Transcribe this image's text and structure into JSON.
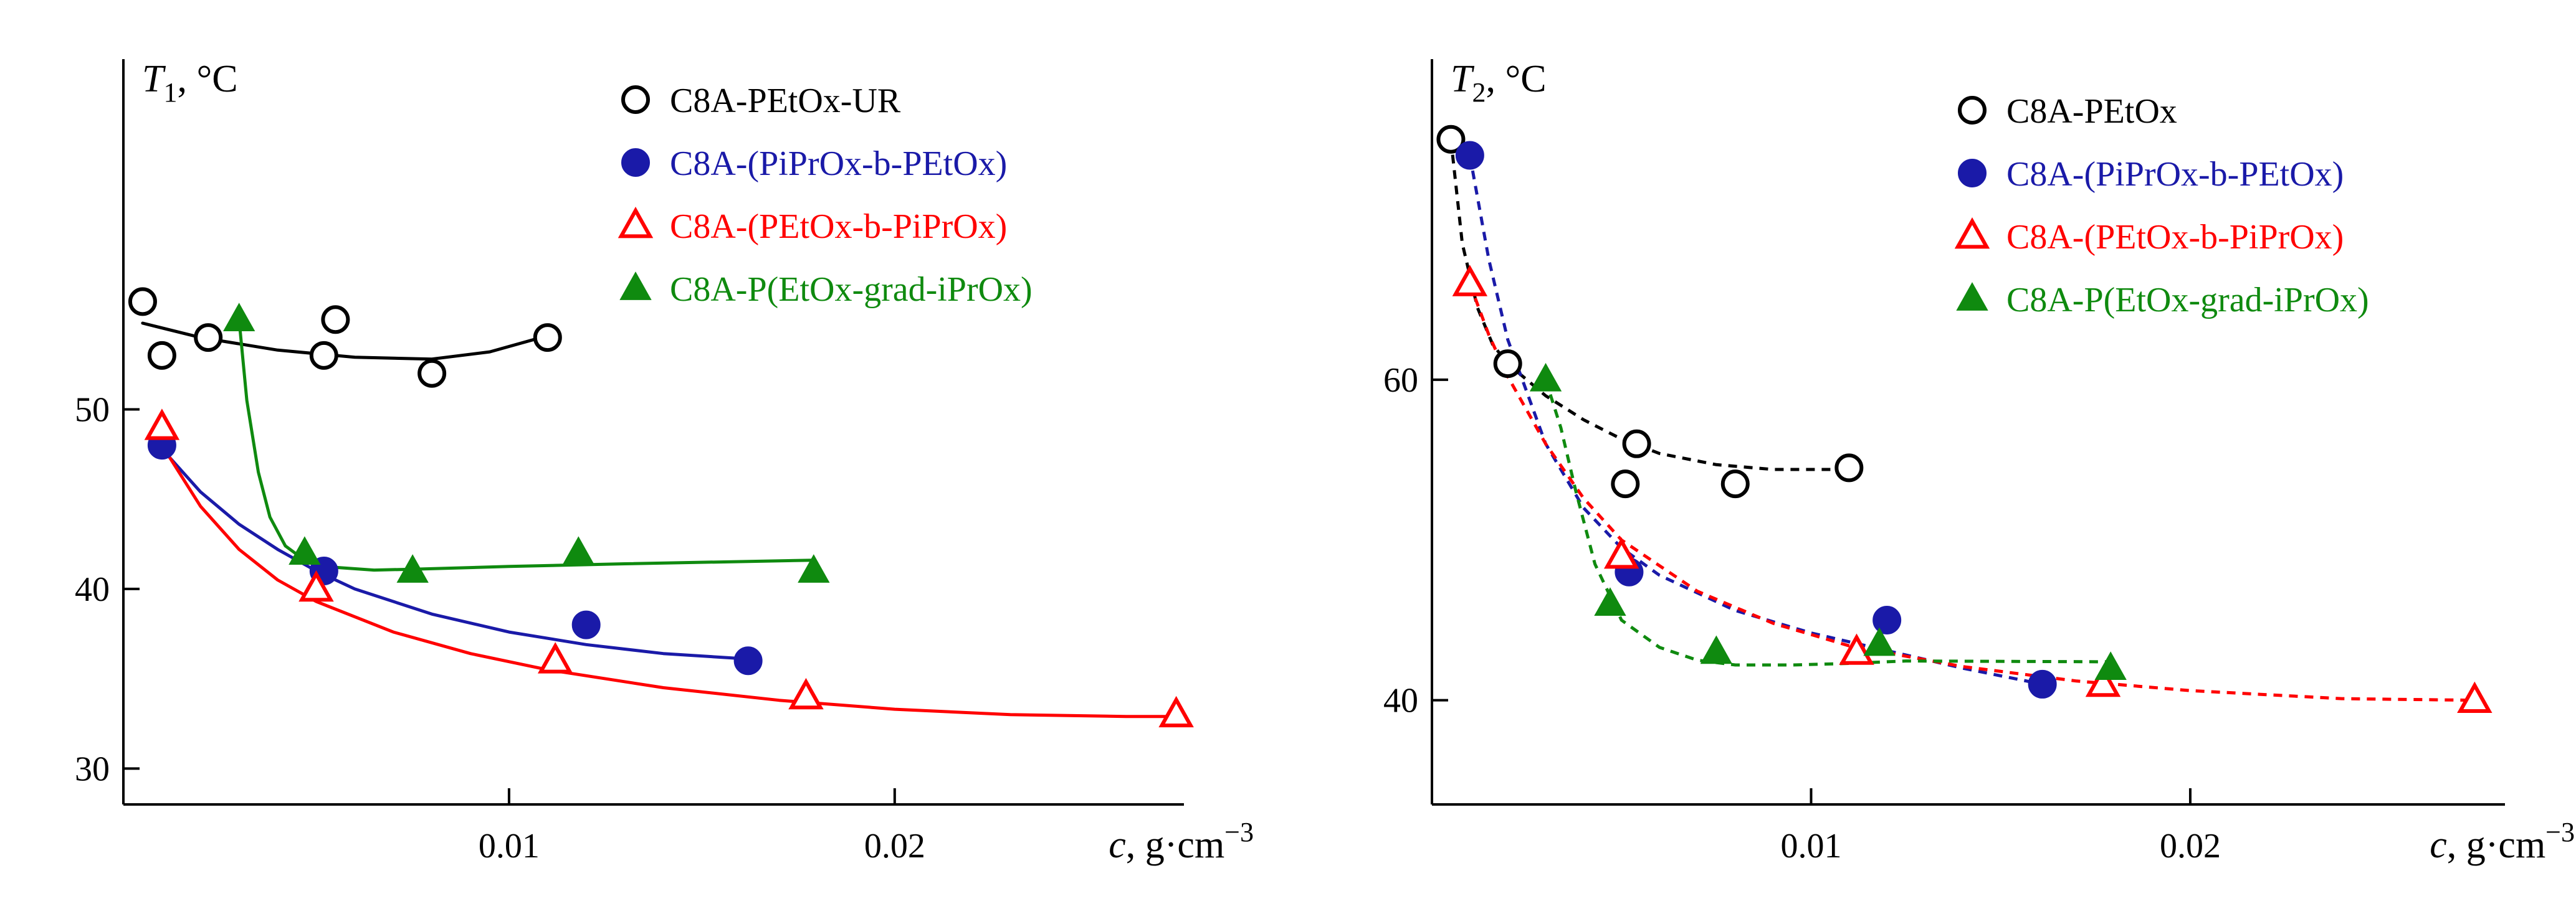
{
  "chart_data": [
    {
      "type": "scatter",
      "title": "",
      "ylabel": {
        "symbol": "T",
        "subscript": "1",
        "unit": ", °C"
      },
      "xlabel": {
        "symbol": "c",
        "unit": ", g·cm",
        "exponent": "−3"
      },
      "xlim": [
        0.0,
        0.0275
      ],
      "ylim": [
        28,
        69.5
      ],
      "xticks": [
        0.01,
        0.02
      ],
      "xtick_labels": [
        "0.01",
        "0.02"
      ],
      "yticks": [
        30,
        40,
        50
      ],
      "ytick_labels": [
        "30",
        "40",
        "50"
      ],
      "legend_position": "top-right",
      "series": [
        {
          "name": "C8A-PEtOx-UR",
          "color": "#000000",
          "marker": "circle-open",
          "line": "solid",
          "x": [
            0.0005,
            0.001,
            0.0022,
            0.0052,
            0.0055,
            0.008,
            0.011
          ],
          "y": [
            56,
            53,
            54,
            53,
            55,
            52,
            54
          ],
          "fit_x": [
            0.0005,
            0.002,
            0.004,
            0.006,
            0.008,
            0.0095,
            0.011
          ],
          "fit_y": [
            54.8,
            54.0,
            53.3,
            52.9,
            52.8,
            53.2,
            54.1
          ]
        },
        {
          "name": "C8A-(PiPrOx-b-PEtOx)",
          "color": "#1a1aa8",
          "marker": "circle-filled",
          "line": "solid",
          "x": [
            0.001,
            0.0052,
            0.012,
            0.0162
          ],
          "y": [
            48,
            41,
            38,
            36
          ],
          "fit_x": [
            0.001,
            0.002,
            0.003,
            0.004,
            0.005,
            0.006,
            0.008,
            0.01,
            0.012,
            0.014,
            0.0162
          ],
          "fit_y": [
            47.8,
            45.4,
            43.6,
            42.2,
            41.0,
            40.0,
            38.6,
            37.6,
            36.9,
            36.4,
            36.1
          ]
        },
        {
          "name": "C8A-(PEtOx-b-PiPrOx)",
          "color": "#ff0000",
          "marker": "triangle-open",
          "line": "solid",
          "x": [
            0.001,
            0.005,
            0.0112,
            0.0177,
            0.0273
          ],
          "y": [
            49,
            40,
            36,
            34,
            33
          ],
          "fit_x": [
            0.001,
            0.002,
            0.003,
            0.004,
            0.005,
            0.007,
            0.009,
            0.011,
            0.014,
            0.017,
            0.02,
            0.023,
            0.026,
            0.0273
          ],
          "fit_y": [
            48.0,
            44.6,
            42.2,
            40.5,
            39.3,
            37.6,
            36.4,
            35.5,
            34.5,
            33.8,
            33.3,
            33.0,
            32.9,
            32.9
          ]
        },
        {
          "name": "C8A-P(EtOx-grad-iPrOx)",
          "color": "#0f8a0f",
          "marker": "triangle-filled",
          "line": "solid",
          "x": [
            0.003,
            0.0047,
            0.0075,
            0.0118,
            0.0179
          ],
          "y": [
            55,
            42,
            41,
            42,
            41
          ],
          "fit_x": [
            0.003,
            0.0032,
            0.0035,
            0.0038,
            0.0042,
            0.0047,
            0.0055,
            0.0065,
            0.0075,
            0.01,
            0.013,
            0.0179
          ],
          "fit_y": [
            55.0,
            50.5,
            46.5,
            44.0,
            42.4,
            41.6,
            41.2,
            41.05,
            41.1,
            41.25,
            41.4,
            41.6
          ]
        }
      ]
    },
    {
      "type": "scatter",
      "title": "",
      "ylabel": {
        "symbol": "T",
        "subscript": "2",
        "unit": ", °C"
      },
      "xlabel": {
        "symbol": "c",
        "unit": ", g·cm",
        "exponent": "−3"
      },
      "xlim": [
        0.0,
        0.0283
      ],
      "ylim": [
        33.5,
        80
      ],
      "xticks": [
        0.01,
        0.02
      ],
      "xtick_labels": [
        "0.01",
        "0.02"
      ],
      "yticks": [
        40,
        60
      ],
      "ytick_labels": [
        "40",
        "60"
      ],
      "legend_position": "top-right",
      "series": [
        {
          "name": "C8A-PEtOx",
          "color": "#000000",
          "marker": "circle-open",
          "line": "dashed",
          "x": [
            0.0005,
            0.002,
            0.0051,
            0.0054,
            0.008,
            0.011
          ],
          "y": [
            75,
            61,
            53.5,
            56,
            53.5,
            54.5
          ],
          "fit_x": [
            0.0005,
            0.0008,
            0.0012,
            0.0016,
            0.002,
            0.003,
            0.004,
            0.005,
            0.006,
            0.0075,
            0.009,
            0.011
          ],
          "fit_y": [
            75,
            68.5,
            64.5,
            62.2,
            61,
            59,
            57.5,
            56.3,
            55.4,
            54.7,
            54.4,
            54.4
          ]
        },
        {
          "name": "C8A-(PiPrOx-b-PEtOx)",
          "color": "#1a1aa8",
          "marker": "circle-filled",
          "line": "dashed",
          "x": [
            0.001,
            0.0052,
            0.012,
            0.0161
          ],
          "y": [
            74,
            48,
            45,
            41
          ],
          "fit_x": [
            0.001,
            0.0015,
            0.002,
            0.003,
            0.004,
            0.005,
            0.006,
            0.008,
            0.01,
            0.012,
            0.014,
            0.0161
          ],
          "fit_y": [
            74,
            67.5,
            62.5,
            56,
            52,
            49.5,
            47.8,
            45.6,
            44.2,
            43.1,
            42.0,
            41.0
          ]
        },
        {
          "name": "C8A-(PEtOx-b-PiPrOx)",
          "color": "#ff0000",
          "marker": "triangle-open",
          "line": "dashed",
          "x": [
            0.001,
            0.005,
            0.0112,
            0.0177,
            0.0275
          ],
          "y": [
            66,
            49,
            43,
            41,
            40
          ],
          "fit_x": [
            0.001,
            0.0015,
            0.002,
            0.003,
            0.004,
            0.005,
            0.007,
            0.009,
            0.011,
            0.014,
            0.017,
            0.02,
            0.024,
            0.0275
          ],
          "fit_y": [
            66,
            62.8,
            60.2,
            56,
            52.6,
            50,
            46.8,
            44.8,
            43.4,
            42.1,
            41.2,
            40.6,
            40.1,
            40.0
          ]
        },
        {
          "name": "C8A-P(EtOx-grad-iPrOx)",
          "color": "#0f8a0f",
          "marker": "triangle-filled",
          "line": "dashed",
          "x": [
            0.003,
            0.0047,
            0.0075,
            0.0118,
            0.0179
          ],
          "y": [
            60,
            46,
            43,
            43.5,
            42
          ],
          "fit_x": [
            0.003,
            0.0034,
            0.0038,
            0.0043,
            0.005,
            0.006,
            0.007,
            0.008,
            0.0095,
            0.011,
            0.0125,
            0.0179
          ],
          "fit_y": [
            60,
            57,
            53,
            48.5,
            45,
            43.3,
            42.5,
            42.2,
            42.2,
            42.3,
            42.45,
            42.4
          ]
        }
      ]
    }
  ]
}
